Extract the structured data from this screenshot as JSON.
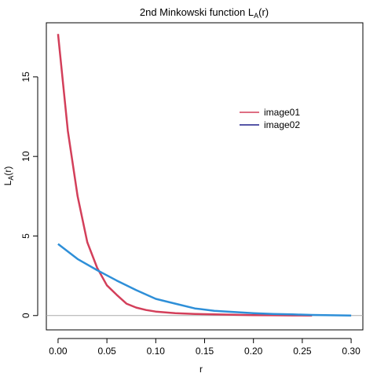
{
  "chart_data": {
    "type": "line",
    "title_main": "2nd Minkowski function L",
    "title_sub": "A",
    "title_suffix": "(r)",
    "xlabel": "r",
    "ylabel_main": "L",
    "ylabel_sub": "A",
    "ylabel_suffix": "(r)",
    "xlim": [
      -0.012,
      0.312
    ],
    "ylim": [
      -0.9,
      18.4
    ],
    "xticks": [
      0.0,
      0.05,
      0.1,
      0.15,
      0.2,
      0.25,
      0.3
    ],
    "xtick_labels": [
      "0.00",
      "0.05",
      "0.10",
      "0.15",
      "0.20",
      "0.25",
      "0.30"
    ],
    "yticks": [
      0,
      5,
      10,
      15
    ],
    "ytick_labels": [
      "0",
      "5",
      "10",
      "15"
    ],
    "hline": 0,
    "legend_position": "right",
    "series": [
      {
        "name": "image01",
        "color": "#d33f5a",
        "x": [
          0.0,
          0.01,
          0.02,
          0.03,
          0.04,
          0.05,
          0.06,
          0.07,
          0.08,
          0.09,
          0.1,
          0.12,
          0.14,
          0.16,
          0.18,
          0.2,
          0.22,
          0.24,
          0.26
        ],
        "y": [
          17.7,
          11.6,
          7.5,
          4.6,
          3.0,
          1.9,
          1.3,
          0.75,
          0.5,
          0.35,
          0.25,
          0.15,
          0.1,
          0.07,
          0.05,
          0.03,
          0.02,
          0.01,
          0.0
        ]
      },
      {
        "name": "image02",
        "color": "#2e8fd8",
        "legend_color": "#1f1f8a",
        "x": [
          0.0,
          0.02,
          0.04,
          0.06,
          0.08,
          0.1,
          0.12,
          0.14,
          0.16,
          0.18,
          0.2,
          0.22,
          0.24,
          0.26,
          0.28,
          0.3
        ],
        "y": [
          4.5,
          3.55,
          2.85,
          2.2,
          1.6,
          1.05,
          0.75,
          0.45,
          0.3,
          0.22,
          0.15,
          0.1,
          0.07,
          0.04,
          0.02,
          0.0
        ]
      }
    ]
  }
}
